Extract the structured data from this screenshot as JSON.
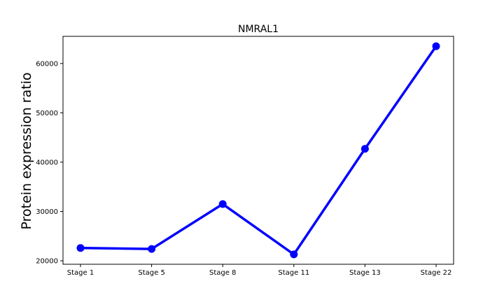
{
  "chart_data": {
    "type": "line",
    "title": "NMRAL1",
    "xlabel": "",
    "ylabel": "Protein expression ratio",
    "categories": [
      "Stage 1",
      "Stage 5",
      "Stage 8",
      "Stage 11",
      "Stage 13",
      "Stage 22"
    ],
    "series": [
      {
        "values": [
          22600,
          22400,
          31500,
          21300,
          42700,
          63500
        ],
        "color": "#0000ff"
      }
    ],
    "ylim": [
      19300,
      65500
    ],
    "yticks": [
      20000,
      30000,
      40000,
      50000,
      60000
    ],
    "ytick_labels": [
      "20000",
      "30000",
      "40000",
      "50000",
      "60000"
    ],
    "grid": false,
    "legend": "none"
  }
}
